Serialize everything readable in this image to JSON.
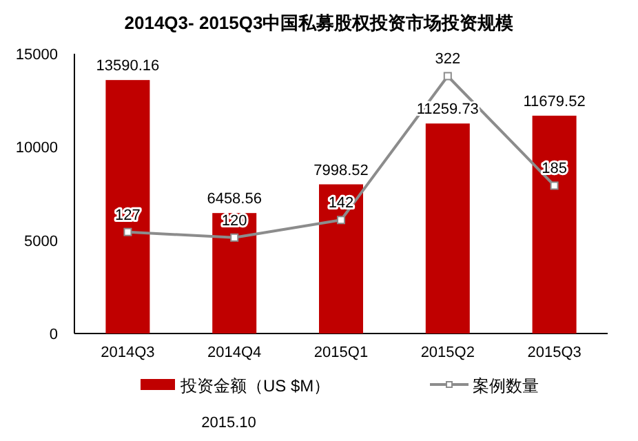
{
  "chart_data": {
    "type": "bar",
    "title": "2014Q3- 2015Q3中国私募股权投资市场投资规模",
    "categories": [
      "2014Q3",
      "2014Q4",
      "2015Q1",
      "2015Q2",
      "2015Q3"
    ],
    "series": [
      {
        "name": "投资金额（US $M）",
        "color": "#c00000",
        "values": [
          13590.16,
          6458.56,
          7998.52,
          11259.73,
          11679.52
        ]
      },
      {
        "name": "案例数量",
        "type": "line",
        "axis": "y2",
        "color": "#8c8c8c",
        "marker": "square",
        "values": [
          127,
          120,
          142,
          322,
          185
        ]
      }
    ],
    "ylim": [
      0,
      15000
    ],
    "yticks": [
      0,
      5000,
      10000,
      15000
    ],
    "y2lim": [
      0,
      350
    ],
    "data_labels": true,
    "legend": "bottom",
    "grid": false,
    "annotations": [
      "2015.10"
    ]
  }
}
